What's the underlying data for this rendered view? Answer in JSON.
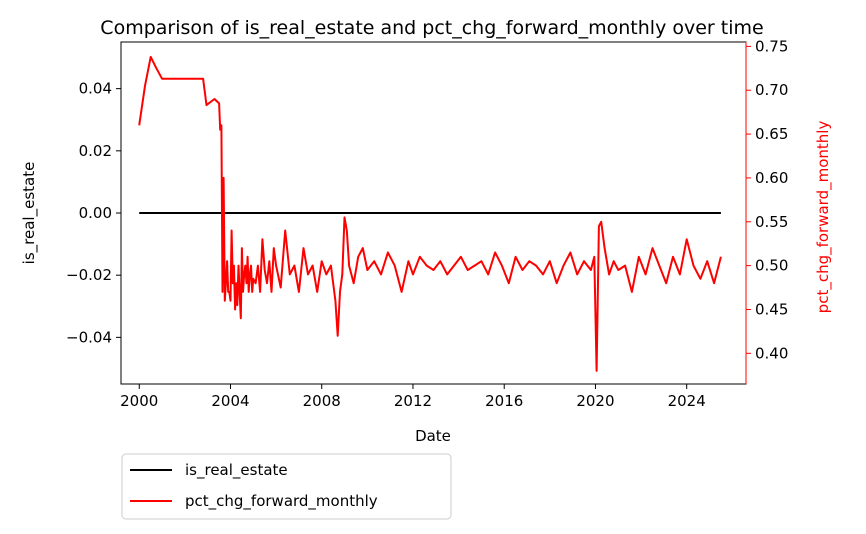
{
  "chart_data": {
    "type": "line",
    "title": "Comparison of is_real_estate and pct_chg_forward_monthly over time",
    "xlabel": "Date",
    "ylabel_left": "is_real_estate",
    "ylabel_right": "pct_chg_forward_monthly",
    "xlim": [
      1999.2,
      2026.6
    ],
    "ylim_left": [
      -0.055,
      0.055
    ],
    "ylim_right": [
      0.365,
      0.755
    ],
    "x_ticks": [
      2000,
      2004,
      2008,
      2012,
      2016,
      2020,
      2024
    ],
    "x_tick_labels": [
      "2000",
      "2004",
      "2008",
      "2012",
      "2016",
      "2020",
      "2024"
    ],
    "y_left_ticks": [
      -0.04,
      -0.02,
      0.0,
      0.02,
      0.04
    ],
    "y_left_tick_labels": [
      "−0.04",
      "−0.02",
      "0.00",
      "0.02",
      "0.04"
    ],
    "y_right_ticks": [
      0.4,
      0.45,
      0.5,
      0.55,
      0.6,
      0.65,
      0.7,
      0.75
    ],
    "y_right_tick_labels": [
      "0.40",
      "0.45",
      "0.50",
      "0.55",
      "0.60",
      "0.65",
      "0.70",
      "0.75"
    ],
    "grid": false,
    "legend_position": "below-left",
    "series": [
      {
        "name": "is_real_estate",
        "axis": "left",
        "color": "#000000",
        "x": [
          2000.0,
          2025.5
        ],
        "y": [
          0.0,
          0.0
        ]
      },
      {
        "name": "pct_chg_forward_monthly",
        "axis": "right",
        "color": "#ff0000",
        "x": [
          2000.0,
          2000.25,
          2000.5,
          2000.75,
          2001.0,
          2002.0,
          2002.8,
          2002.95,
          2003.3,
          2003.5,
          2003.55,
          2003.6,
          2003.65,
          2003.7,
          2003.75,
          2003.8,
          2003.85,
          2003.9,
          2003.95,
          2004.0,
          2004.05,
          2004.1,
          2004.15,
          2004.2,
          2004.25,
          2004.3,
          2004.35,
          2004.4,
          2004.45,
          2004.5,
          2004.55,
          2004.6,
          2004.65,
          2004.7,
          2004.75,
          2004.8,
          2004.85,
          2004.9,
          2004.95,
          2005.0,
          2005.1,
          2005.2,
          2005.3,
          2005.4,
          2005.5,
          2005.6,
          2005.7,
          2005.8,
          2005.9,
          2006.0,
          2006.2,
          2006.4,
          2006.6,
          2006.8,
          2007.0,
          2007.2,
          2007.4,
          2007.6,
          2007.8,
          2008.0,
          2008.2,
          2008.4,
          2008.6,
          2008.7,
          2008.8,
          2008.9,
          2009.0,
          2009.1,
          2009.2,
          2009.4,
          2009.6,
          2009.8,
          2010.0,
          2010.3,
          2010.6,
          2010.9,
          2011.2,
          2011.5,
          2011.8,
          2012.0,
          2012.3,
          2012.6,
          2012.9,
          2013.2,
          2013.5,
          2013.8,
          2014.1,
          2014.4,
          2014.7,
          2015.0,
          2015.3,
          2015.6,
          2015.9,
          2016.2,
          2016.5,
          2016.8,
          2017.1,
          2017.4,
          2017.7,
          2018.0,
          2018.3,
          2018.6,
          2018.9,
          2019.2,
          2019.5,
          2019.8,
          2019.95,
          2020.05,
          2020.15,
          2020.25,
          2020.4,
          2020.6,
          2020.8,
          2021.0,
          2021.3,
          2021.6,
          2021.9,
          2022.2,
          2022.5,
          2022.8,
          2023.1,
          2023.4,
          2023.7,
          2024.0,
          2024.3,
          2024.6,
          2024.9,
          2025.2,
          2025.5
        ],
        "y": [
          0.66,
          0.705,
          0.738,
          0.725,
          0.713,
          0.713,
          0.713,
          0.683,
          0.69,
          0.685,
          0.655,
          0.66,
          0.47,
          0.6,
          0.46,
          0.48,
          0.505,
          0.47,
          0.47,
          0.46,
          0.54,
          0.48,
          0.5,
          0.45,
          0.48,
          0.455,
          0.5,
          0.47,
          0.44,
          0.52,
          0.47,
          0.49,
          0.5,
          0.48,
          0.51,
          0.47,
          0.49,
          0.5,
          0.47,
          0.485,
          0.48,
          0.5,
          0.47,
          0.53,
          0.495,
          0.48,
          0.505,
          0.47,
          0.52,
          0.5,
          0.475,
          0.54,
          0.49,
          0.5,
          0.47,
          0.52,
          0.49,
          0.5,
          0.47,
          0.505,
          0.49,
          0.5,
          0.46,
          0.42,
          0.47,
          0.49,
          0.555,
          0.54,
          0.5,
          0.48,
          0.51,
          0.52,
          0.495,
          0.505,
          0.49,
          0.515,
          0.5,
          0.47,
          0.505,
          0.49,
          0.51,
          0.5,
          0.495,
          0.505,
          0.49,
          0.5,
          0.51,
          0.495,
          0.5,
          0.505,
          0.49,
          0.515,
          0.5,
          0.48,
          0.51,
          0.495,
          0.505,
          0.5,
          0.49,
          0.505,
          0.48,
          0.5,
          0.515,
          0.49,
          0.505,
          0.495,
          0.51,
          0.38,
          0.545,
          0.55,
          0.52,
          0.49,
          0.505,
          0.495,
          0.5,
          0.47,
          0.51,
          0.49,
          0.52,
          0.5,
          0.48,
          0.51,
          0.49,
          0.53,
          0.5,
          0.485,
          0.505,
          0.48,
          0.51
        ]
      }
    ]
  }
}
